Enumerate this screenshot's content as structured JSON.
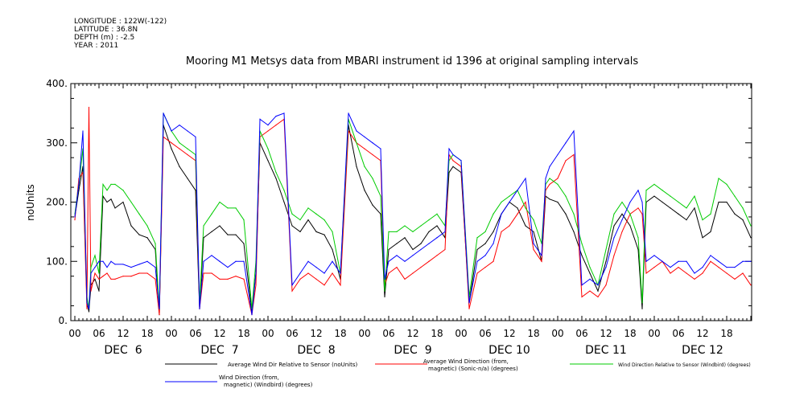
{
  "meta": [
    "LONGITUDE : 122W(-122)",
    "LATITUDE : 36.8N",
    "DEPTH (m) : -2.5",
    "YEAR : 2011"
  ],
  "chart_data": {
    "type": "line",
    "title": "Mooring M1 Metsys data from MBARI instrument id 1396 at original sampling intervals",
    "ylabel": "noUnits",
    "ylim": [
      0,
      400
    ],
    "yticks": [
      "0.",
      "100.",
      "200.",
      "300.",
      "400."
    ],
    "xlim_hours": [
      0,
      168
    ],
    "xtick_hours": [
      "00",
      "06",
      "12",
      "18"
    ],
    "days": [
      "DEC  6",
      "DEC  7",
      "DEC  8",
      "DEC  9",
      "DEC 10",
      "DEC 11",
      "DEC 12"
    ],
    "x_units": "hours from 2011-12-06 00:00",
    "series": [
      {
        "name": "Average Wind Dir Relative to Sensor (noUnits)",
        "color": "#000000",
        "x": [
          0,
          1,
          2,
          3,
          3.5,
          4,
          5,
          6,
          7,
          8,
          9,
          10,
          12,
          14,
          16,
          18,
          20,
          21,
          22,
          24,
          26,
          28,
          30,
          31,
          32,
          34,
          36,
          38,
          40,
          42,
          44,
          45,
          46,
          48,
          50,
          52,
          54,
          56,
          58,
          60,
          62,
          64,
          66,
          68,
          70,
          72,
          74,
          76,
          77,
          78,
          80,
          82,
          84,
          86,
          88,
          90,
          92,
          93,
          94,
          96,
          98,
          100,
          102,
          104,
          106,
          108,
          110,
          112,
          114,
          116,
          117,
          118,
          120,
          122,
          124,
          126,
          128,
          130,
          132,
          134,
          136,
          138,
          140,
          141,
          142,
          144,
          146,
          148,
          150,
          152,
          154,
          156,
          158,
          160,
          162,
          164,
          166,
          168
        ],
        "y": [
          175,
          220,
          260,
          30,
          15,
          60,
          70,
          50,
          210,
          200,
          205,
          190,
          200,
          160,
          145,
          140,
          120,
          10,
          330,
          290,
          260,
          240,
          220,
          20,
          140,
          150,
          160,
          145,
          145,
          130,
          15,
          80,
          300,
          270,
          240,
          200,
          160,
          150,
          170,
          150,
          145,
          120,
          70,
          330,
          260,
          220,
          195,
          180,
          40,
          120,
          130,
          140,
          120,
          130,
          150,
          160,
          140,
          250,
          260,
          250,
          30,
          120,
          130,
          150,
          180,
          200,
          190,
          160,
          150,
          100,
          210,
          205,
          200,
          180,
          150,
          110,
          80,
          50,
          100,
          160,
          180,
          160,
          120,
          20,
          200,
          210,
          200,
          190,
          180,
          170,
          190,
          140,
          150,
          200,
          200,
          180,
          170,
          140
        ]
      },
      {
        "name": "Average Wind Direction (from, magnetic) (Sonic-n/a) (degrees)",
        "color": "#ff0000",
        "x": [
          0,
          1,
          2,
          3,
          3.5,
          4,
          5,
          6,
          7,
          8,
          9,
          10,
          12,
          14,
          16,
          18,
          20,
          21,
          22,
          24,
          26,
          28,
          30,
          31,
          32,
          34,
          36,
          38,
          40,
          42,
          44,
          45,
          46,
          48,
          50,
          52,
          54,
          56,
          58,
          60,
          62,
          64,
          66,
          68,
          70,
          72,
          74,
          76,
          77,
          78,
          80,
          82,
          84,
          86,
          88,
          90,
          92,
          93,
          94,
          96,
          98,
          100,
          102,
          104,
          106,
          108,
          110,
          112,
          114,
          116,
          117,
          118,
          120,
          122,
          124,
          126,
          128,
          130,
          132,
          134,
          136,
          138,
          140,
          141,
          142,
          144,
          146,
          148,
          150,
          152,
          154,
          156,
          158,
          160,
          162,
          164,
          166,
          168
        ],
        "y": [
          170,
          240,
          250,
          20,
          360,
          50,
          80,
          70,
          75,
          80,
          70,
          70,
          75,
          75,
          80,
          80,
          70,
          10,
          310,
          300,
          290,
          280,
          270,
          20,
          80,
          80,
          70,
          70,
          75,
          70,
          10,
          60,
          310,
          320,
          330,
          340,
          50,
          70,
          80,
          70,
          60,
          80,
          60,
          320,
          300,
          290,
          280,
          270,
          60,
          80,
          90,
          70,
          80,
          90,
          100,
          110,
          120,
          280,
          270,
          260,
          20,
          80,
          90,
          100,
          150,
          160,
          180,
          200,
          120,
          100,
          220,
          230,
          240,
          270,
          280,
          40,
          50,
          40,
          60,
          110,
          150,
          180,
          190,
          180,
          80,
          90,
          100,
          80,
          90,
          80,
          70,
          80,
          100,
          90,
          80,
          70,
          80,
          60
        ]
      },
      {
        "name": "Wind Direction Relative to Sensor (Windbird) (degrees)",
        "color": "#00cc00",
        "x": [
          0,
          1,
          2,
          3,
          3.5,
          4,
          5,
          6,
          7,
          8,
          9,
          10,
          12,
          14,
          16,
          18,
          20,
          21,
          22,
          24,
          26,
          28,
          30,
          31,
          32,
          34,
          36,
          38,
          40,
          42,
          44,
          45,
          46,
          48,
          50,
          52,
          54,
          56,
          58,
          60,
          62,
          64,
          66,
          68,
          70,
          72,
          74,
          76,
          77,
          78,
          80,
          82,
          84,
          86,
          88,
          90,
          92,
          93,
          94,
          96,
          98,
          100,
          102,
          104,
          106,
          108,
          110,
          112,
          114,
          116,
          117,
          118,
          120,
          122,
          124,
          126,
          128,
          130,
          132,
          134,
          136,
          138,
          140,
          141,
          142,
          144,
          146,
          148,
          150,
          152,
          154,
          156,
          158,
          160,
          162,
          164,
          166,
          168
        ],
        "y": [
          180,
          230,
          290,
          40,
          20,
          90,
          110,
          80,
          230,
          220,
          230,
          230,
          220,
          200,
          180,
          160,
          130,
          20,
          350,
          320,
          300,
          290,
          280,
          30,
          160,
          180,
          200,
          190,
          190,
          170,
          20,
          100,
          320,
          290,
          250,
          220,
          180,
          170,
          190,
          180,
          170,
          150,
          80,
          340,
          300,
          260,
          240,
          210,
          50,
          150,
          150,
          160,
          150,
          160,
          170,
          180,
          160,
          270,
          280,
          270,
          40,
          140,
          150,
          180,
          200,
          210,
          220,
          190,
          170,
          130,
          230,
          240,
          230,
          210,
          180,
          130,
          90,
          60,
          120,
          180,
          200,
          180,
          140,
          30,
          220,
          230,
          220,
          210,
          200,
          190,
          210,
          170,
          180,
          240,
          230,
          210,
          190,
          160
        ]
      },
      {
        "name": "Wind Direction (from, magnetic) (Windbird) (degrees)",
        "color": "#0000ff",
        "x": [
          0,
          1,
          2,
          3,
          3.5,
          4,
          5,
          6,
          7,
          8,
          9,
          10,
          12,
          14,
          16,
          18,
          20,
          21,
          22,
          24,
          26,
          28,
          30,
          31,
          32,
          34,
          36,
          38,
          40,
          42,
          44,
          45,
          46,
          48,
          50,
          52,
          54,
          56,
          58,
          60,
          62,
          64,
          66,
          68,
          70,
          72,
          74,
          76,
          77,
          78,
          80,
          82,
          84,
          86,
          88,
          90,
          92,
          93,
          94,
          96,
          98,
          100,
          102,
          104,
          106,
          108,
          110,
          112,
          114,
          116,
          117,
          118,
          120,
          122,
          124,
          126,
          128,
          130,
          132,
          134,
          136,
          138,
          140,
          141,
          142,
          144,
          146,
          148,
          150,
          152,
          154,
          156,
          158,
          160,
          162,
          164,
          166,
          168
        ],
        "y": [
          175,
          230,
          320,
          30,
          20,
          80,
          90,
          100,
          100,
          90,
          100,
          95,
          95,
          90,
          95,
          100,
          90,
          20,
          350,
          320,
          330,
          320,
          310,
          20,
          100,
          110,
          100,
          90,
          100,
          100,
          10,
          80,
          340,
          330,
          345,
          350,
          60,
          80,
          100,
          90,
          80,
          100,
          80,
          350,
          320,
          310,
          300,
          290,
          70,
          100,
          110,
          100,
          110,
          120,
          130,
          140,
          150,
          290,
          280,
          270,
          30,
          100,
          110,
          130,
          180,
          200,
          220,
          240,
          130,
          110,
          240,
          260,
          280,
          300,
          320,
          60,
          70,
          60,
          90,
          140,
          170,
          200,
          220,
          200,
          100,
          110,
          100,
          90,
          100,
          100,
          80,
          90,
          110,
          100,
          90,
          90,
          100,
          100
        ]
      }
    ]
  }
}
